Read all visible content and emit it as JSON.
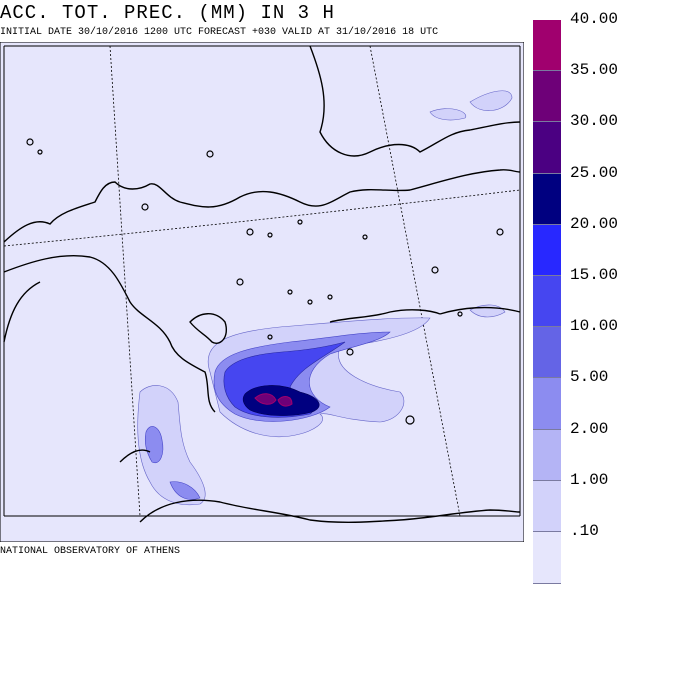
{
  "header": {
    "title": "ACC. TOT. PREC. (MM) IN 3 H",
    "subtitle": "INITIAL DATE 30/10/2016   1200 UTC  FORECAST +030 VALID AT  31/10/2016  18 UTC"
  },
  "footer": {
    "credit": "NATIONAL OBSERVATORY OF ATHENS"
  },
  "legend": {
    "levels": [
      {
        "label": "40.00",
        "color": "#a0006e"
      },
      {
        "label": "35.00",
        "color": "#6e0078"
      },
      {
        "label": "30.00",
        "color": "#4b0082"
      },
      {
        "label": "25.00",
        "color": "#000080"
      },
      {
        "label": "20.00",
        "color": "#2828ff"
      },
      {
        "label": "15.00",
        "color": "#4646f0"
      },
      {
        "label": "10.00",
        "color": "#6464e6"
      },
      {
        "label": "5.00",
        "color": "#8c8cf0"
      },
      {
        "label": "2.00",
        "color": "#b4b4f5"
      },
      {
        "label": "1.00",
        "color": "#d2d2fa"
      },
      {
        "label": ".10",
        "color": "#e6e6fc"
      }
    ]
  },
  "map": {
    "background_color": "#e6e6fc",
    "region": "Greece / Aegean / western Turkey"
  }
}
